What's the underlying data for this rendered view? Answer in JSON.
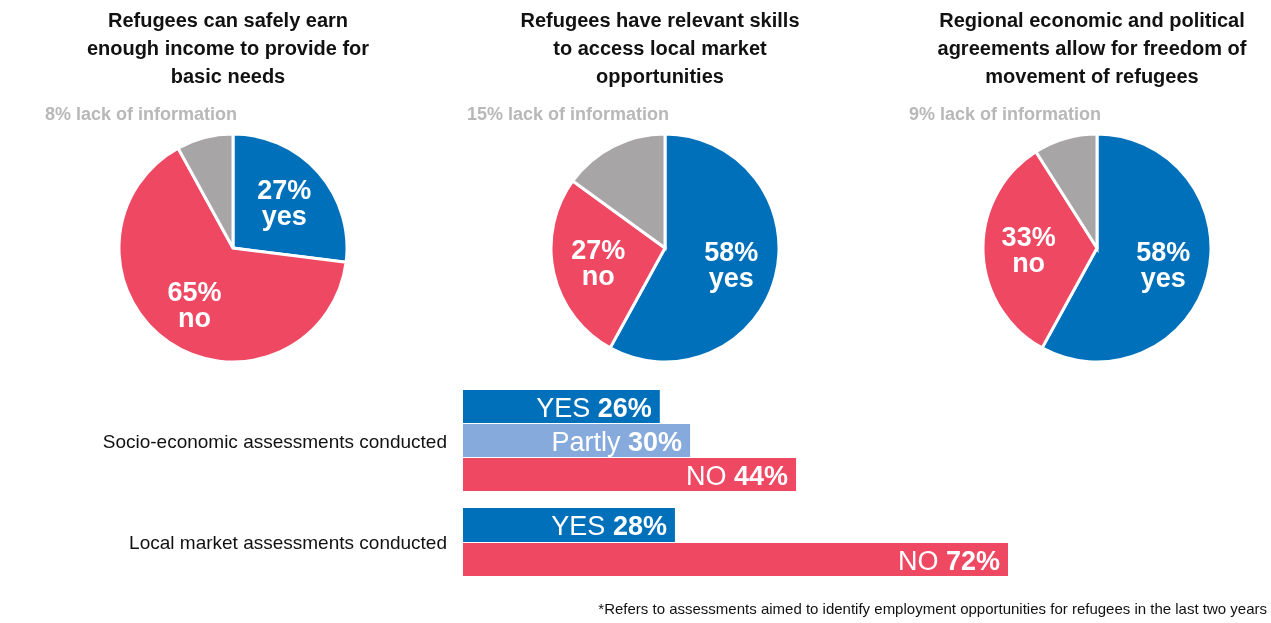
{
  "chart_data": [
    {
      "type": "pie",
      "title": "Refugees can safely earn enough income to provide for basic needs",
      "categories": [
        "yes",
        "no",
        "lack of information"
      ],
      "values": [
        27,
        65,
        8
      ],
      "value_labels": [
        "27%",
        "65%",
        "8%"
      ],
      "colors": [
        "#0070bb",
        "#ef4862",
        "#a7a5a6"
      ],
      "legend": false
    },
    {
      "type": "pie",
      "title": "Refugees have relevant skills to access local market opportunities",
      "categories": [
        "yes",
        "no",
        "lack of information"
      ],
      "values": [
        58,
        27,
        15
      ],
      "value_labels": [
        "58%",
        "27%",
        "15%"
      ],
      "colors": [
        "#0070bb",
        "#ef4862",
        "#a7a5a6"
      ],
      "legend": false
    },
    {
      "type": "pie",
      "title": "Regional economic and political agreements allow for freedom of movement of refugees",
      "categories": [
        "yes",
        "no",
        "lack of information"
      ],
      "values": [
        58,
        33,
        9
      ],
      "value_labels": [
        "58%",
        "33%",
        "9%"
      ],
      "colors": [
        "#0070bb",
        "#ef4862",
        "#a7a5a6"
      ],
      "legend": false
    },
    {
      "type": "bar",
      "orientation": "horizontal",
      "categories": [
        "Socio-economic assessments conducted",
        "Local market assessments conducted"
      ],
      "tick_labels": "y",
      "legend": false,
      "series": [
        {
          "name": "YES",
          "color": "#0070bb",
          "values": [
            26,
            28
          ],
          "value_labels": [
            "26%",
            "28%"
          ]
        },
        {
          "name": "Partly",
          "color": "#85aadb",
          "values": [
            30,
            null
          ],
          "value_labels": [
            "30%",
            null
          ]
        },
        {
          "name": "NO",
          "color": "#ef4862",
          "values": [
            44,
            72
          ],
          "value_labels": [
            "44%",
            "72%"
          ]
        }
      ],
      "annotations": [
        "*Refers to assessments aimed to identify employment opportunities for refugees in the last two years"
      ]
    }
  ]
}
